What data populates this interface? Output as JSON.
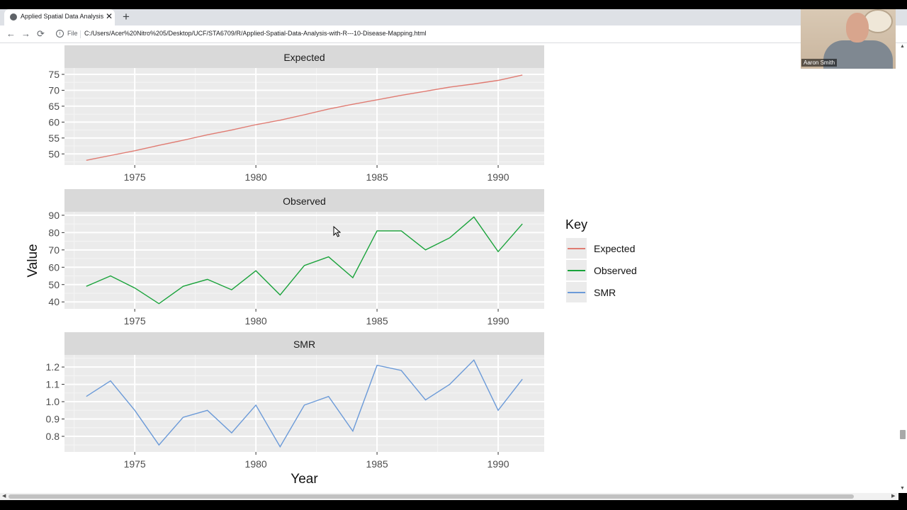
{
  "browser": {
    "tab_title": "Applied Spatial Data Analysis wi",
    "tab_close": "✕",
    "new_tab": "+",
    "back": "←",
    "forward": "→",
    "reload": "⟳",
    "info": "i",
    "file_label": "File",
    "url": "C:/Users/Acer%20Nitro%205/Desktop/UCF/STA6709/R/Applied-Spatial-Data-Analysis-with-R---10-Disease-Mapping.html"
  },
  "webcam": {
    "name": "Aaron Smith"
  },
  "scrollbars": {
    "up": "▲",
    "down": "▼",
    "left": "◀",
    "right": "▶"
  },
  "colors": {
    "expected": "#e07b72",
    "observed": "#1aa33b",
    "smr": "#6b9ad8",
    "panel_bg": "#ebebeb",
    "strip_bg": "#d9d9d9"
  },
  "chart_data": {
    "type": "line",
    "layout": "facets",
    "xlabel": "Year",
    "ylabel": "Value",
    "x": [
      1973,
      1974,
      1975,
      1976,
      1977,
      1978,
      1979,
      1980,
      1981,
      1982,
      1983,
      1984,
      1985,
      1986,
      1987,
      1988,
      1989,
      1990,
      1991
    ],
    "xticks": [
      1975,
      1980,
      1985,
      1990
    ],
    "legend": {
      "title": "Key",
      "position": "right",
      "entries": [
        "Expected",
        "Observed",
        "SMR"
      ]
    },
    "grid": true,
    "panels": [
      {
        "strip": "Expected",
        "series": "Expected",
        "ylim": [
          46.5,
          77
        ],
        "yticks": [
          50,
          55,
          60,
          65,
          70,
          75
        ],
        "values": [
          48.0,
          49.5,
          51.0,
          52.7,
          54.3,
          56.0,
          57.5,
          59.2,
          60.6,
          62.3,
          64.1,
          65.6,
          67.0,
          68.4,
          69.7,
          71.0,
          72.0,
          73.1,
          74.8
        ]
      },
      {
        "strip": "Observed",
        "series": "Observed",
        "ylim": [
          36,
          92
        ],
        "yticks": [
          40,
          50,
          60,
          70,
          80,
          90
        ],
        "values": [
          49,
          55,
          48,
          39,
          49,
          53,
          47,
          58,
          44,
          61,
          66,
          54,
          81,
          81,
          70,
          77,
          89,
          69,
          85
        ]
      },
      {
        "strip": "SMR",
        "series": "SMR",
        "ylim": [
          0.71,
          1.27
        ],
        "yticks": [
          "0.8",
          "0.9",
          "1.0",
          "1.1",
          "1.2"
        ],
        "values": [
          1.03,
          1.12,
          0.95,
          0.75,
          0.91,
          0.95,
          0.82,
          0.98,
          0.74,
          0.98,
          1.03,
          0.83,
          1.21,
          1.18,
          1.01,
          1.1,
          1.24,
          0.95,
          1.13
        ]
      }
    ]
  }
}
